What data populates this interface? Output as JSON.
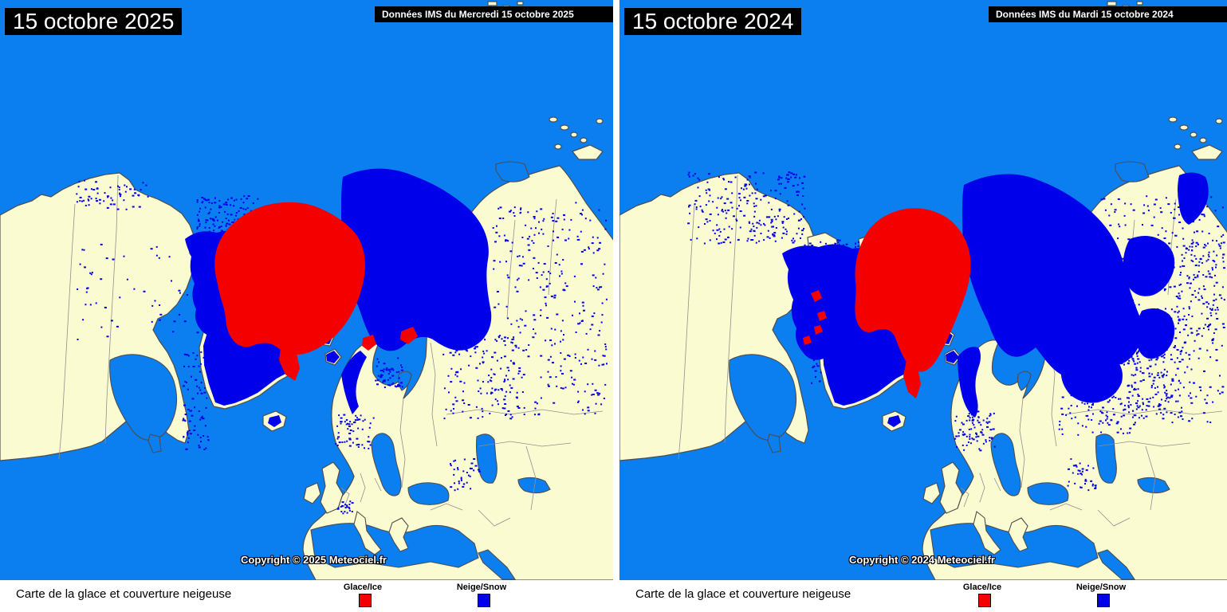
{
  "colors": {
    "ocean": "#0b7ef0",
    "land": "#fbfbd2",
    "snow": "#0000ea",
    "ice": "#f50000",
    "coast": "#4d4d4d",
    "border": "#8f8f8f",
    "title_bg": "#000000",
    "title_text": "#ffffff",
    "footer_bg": "#ffffff",
    "footer_text": "#000000"
  },
  "panels": [
    {
      "title": "15 octobre 2025",
      "data_banner": "Données IMS du Mercredi 15 octobre 2025",
      "copyright": "Copyright © 2025 Meteociel.fr"
    },
    {
      "title": "15 octobre 2024",
      "data_banner": "Données IMS du Mardi 15 octobre 2024",
      "copyright": "Copyright © 2024 Meteociel.fr"
    }
  ],
  "footer": {
    "caption": "Carte de la glace et couverture neigeuse",
    "legend": [
      {
        "label": "Glace/Ice",
        "color": "#f50000"
      },
      {
        "label": "Neige/Snow",
        "color": "#0000ea"
      }
    ]
  }
}
